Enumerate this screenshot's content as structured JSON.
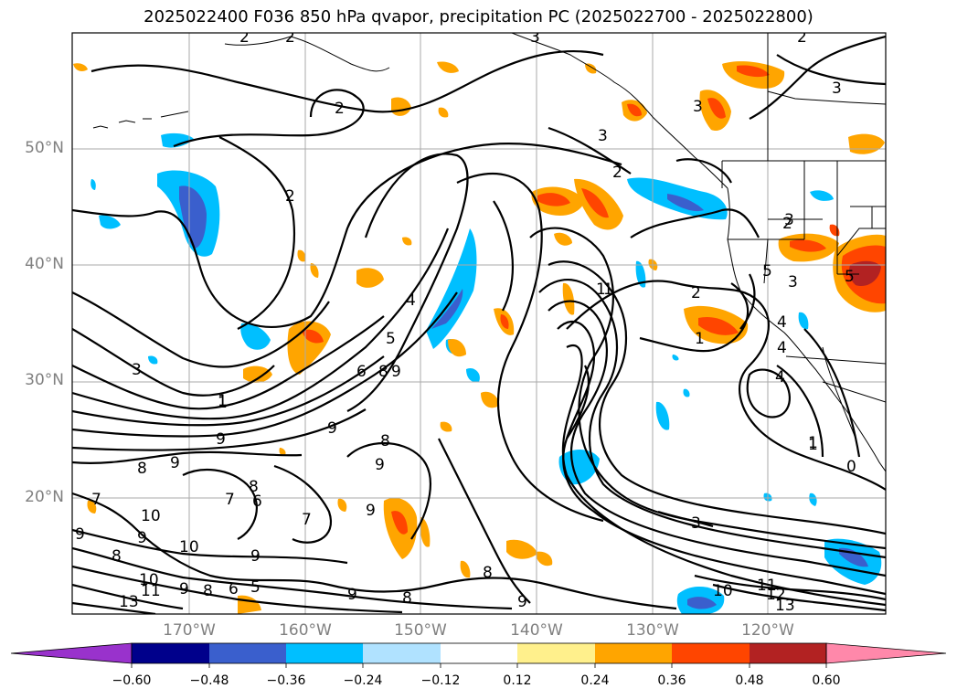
{
  "title": "2025022400 F036 850 hPa qvapor, precipitation PC (2025022700 - 2025022800)",
  "map": {
    "lat_labels": [
      "50°N",
      "40°N",
      "30°N",
      "20°N"
    ],
    "lon_labels": [
      "170°W",
      "160°W",
      "150°W",
      "140°W",
      "130°W",
      "120°W"
    ],
    "grid": true
  },
  "colorbar": {
    "extend": "both",
    "colors": [
      "#9932cc",
      "#00008b",
      "#3a5fcd",
      "#00bfff",
      "#b0e2ff",
      "#ffffff",
      "#fff08c",
      "#ffa500",
      "#ff4500",
      "#b22222",
      "#ff88aa"
    ],
    "tick_labels": [
      "−0.60",
      "−0.48",
      "−0.36",
      "−0.24",
      "−0.12",
      "0.12",
      "0.24",
      "0.36",
      "0.48",
      "0.60"
    ]
  },
  "contour_labels": [
    "2",
    "2",
    "2",
    "3",
    "2",
    "3",
    "3",
    "2",
    "3",
    "1",
    "2",
    "2",
    "1",
    "4",
    "5",
    "6",
    "8",
    "9",
    "3",
    "1",
    "9",
    "9",
    "8",
    "9",
    "8",
    "9",
    "8",
    "7",
    "6",
    "7",
    "10",
    "9",
    "10",
    "8",
    "9",
    "7",
    "9",
    "10",
    "6",
    "5",
    "9",
    "8",
    "13",
    "11",
    "9",
    "8",
    "9",
    "9",
    "8",
    "1",
    "4",
    "1",
    "2",
    "1",
    "3",
    "4",
    "5",
    "5",
    "3",
    "0",
    "10",
    "11",
    "12",
    "13",
    "3",
    "4",
    "1"
  ]
}
